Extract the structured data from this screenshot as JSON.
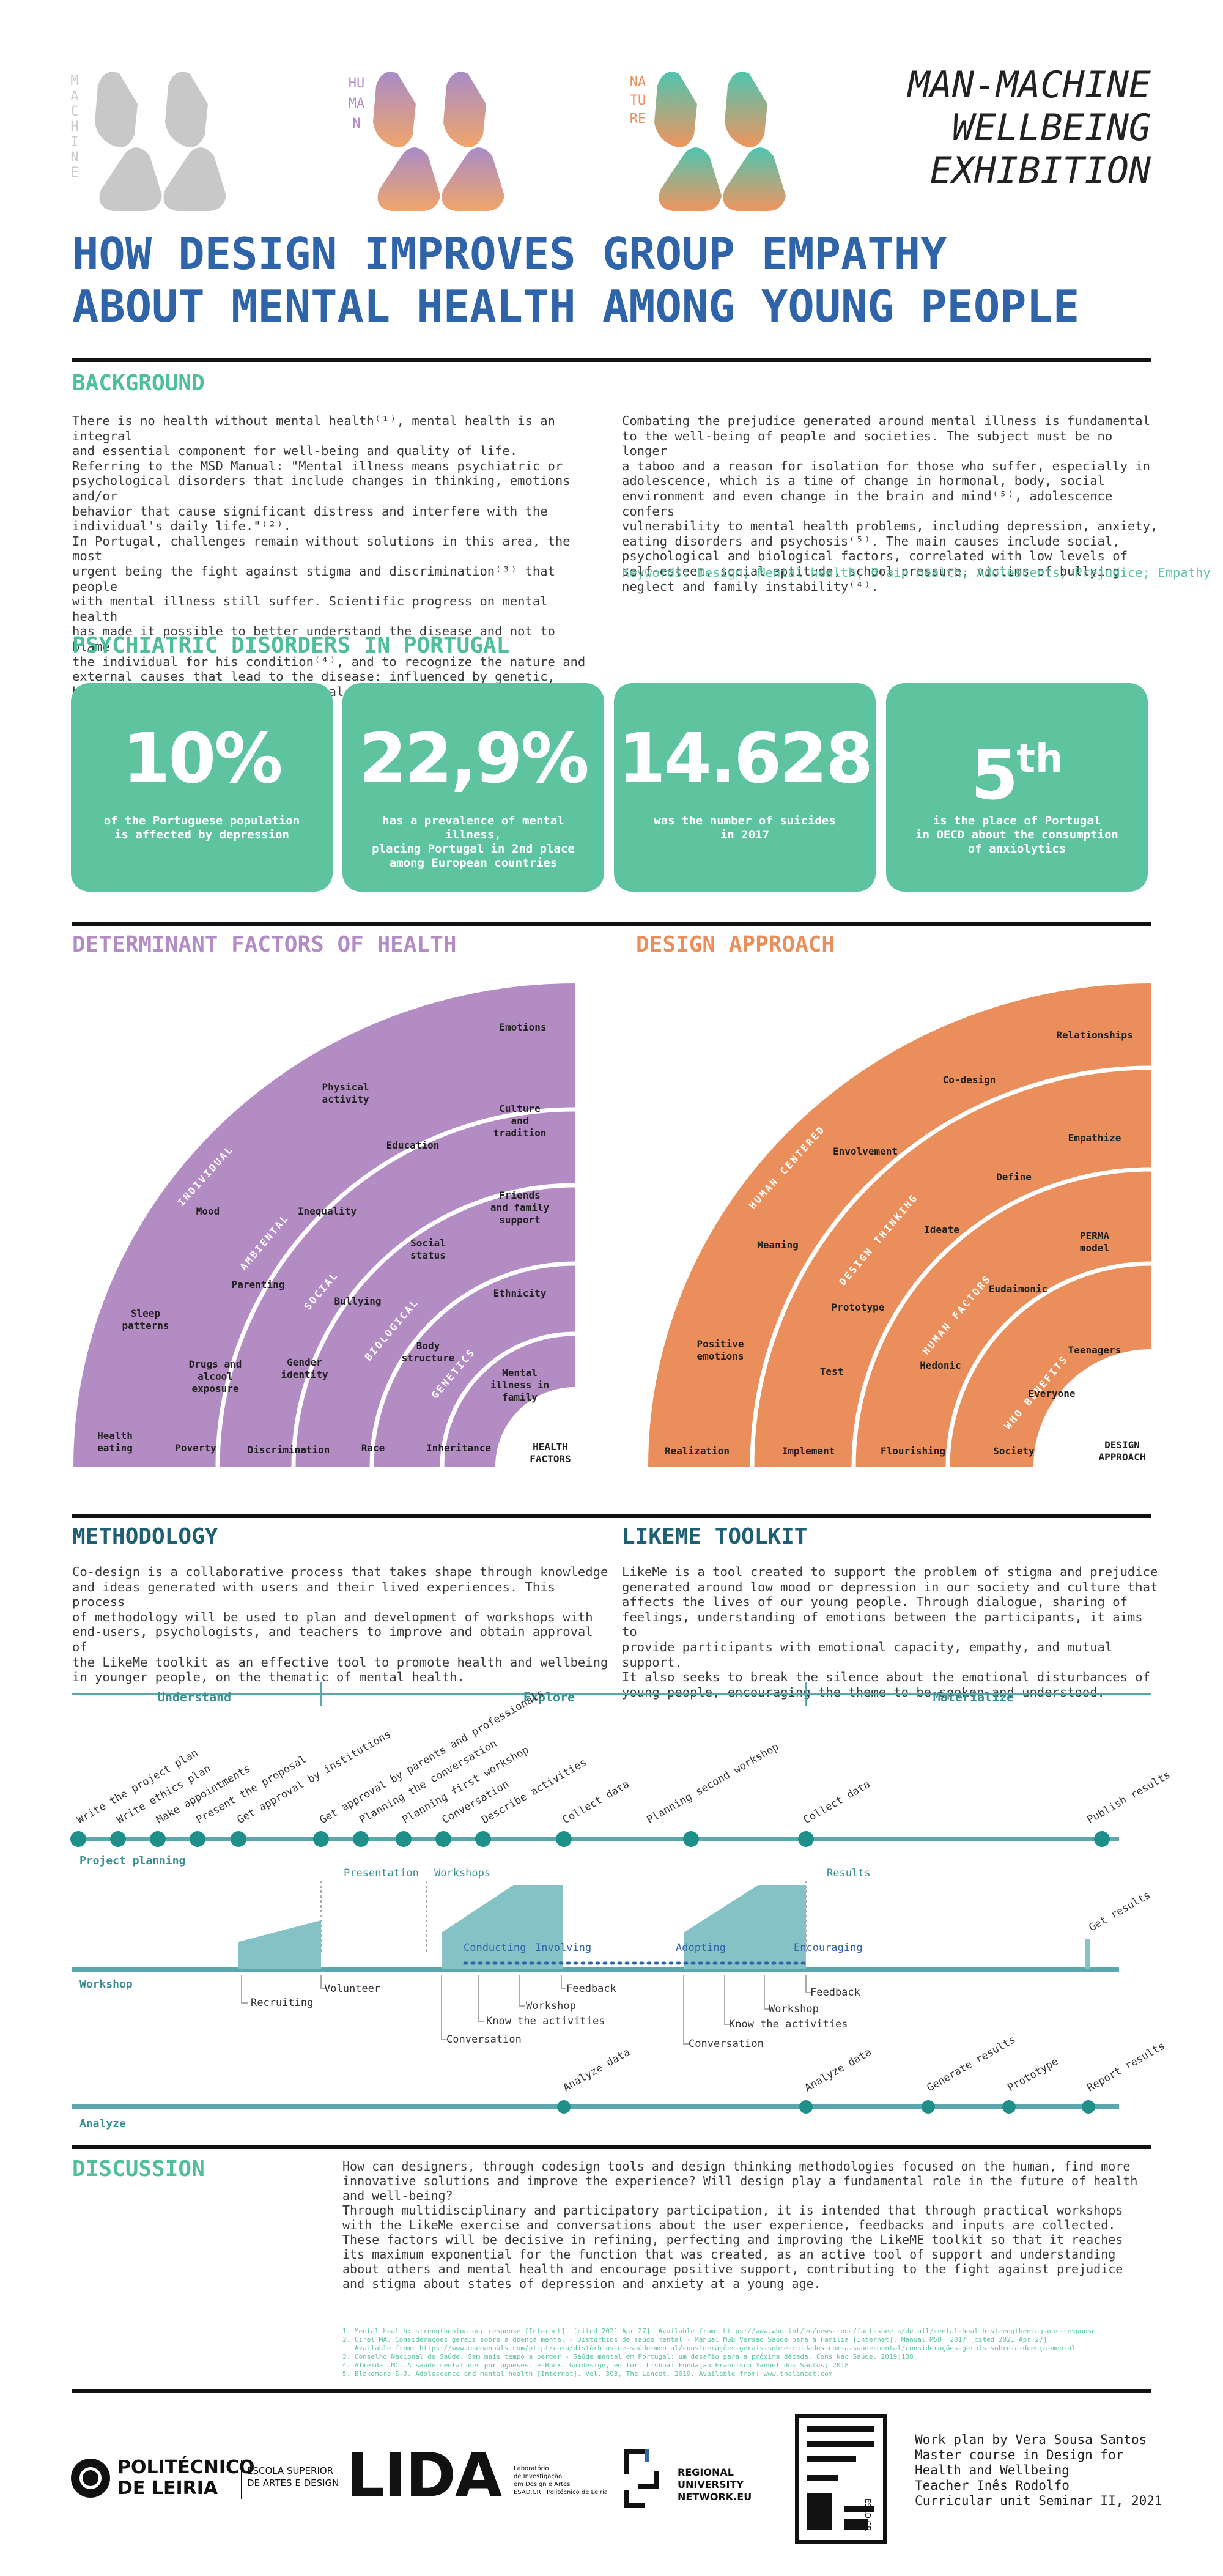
{
  "header": {
    "logos": [
      {
        "vertical_text": "MACHINE",
        "color": "#c9c9c9"
      },
      {
        "vertical_text": "HUMAN",
        "color": "#b48cc4"
      },
      {
        "vertical_text": "NATURE",
        "color": "#ea8f5b"
      }
    ],
    "exhibition_title": [
      "MAN-MACHINE",
      "WELLBEING",
      "EXHIBITION"
    ]
  },
  "main_title": [
    "HOW DESIGN IMPROVES GROUP EMPATHY",
    "ABOUT MENTAL HEALTH AMONG YOUNG PEOPLE"
  ],
  "background": {
    "heading": "BACKGROUND",
    "left_text": "There is no health without mental health⁽¹⁾, mental health is an integral\nand essential component for well-being and quality of life.\nReferring to the MSD Manual: \"Mental illness means psychiatric or\npsychological disorders that include changes in thinking, emotions and/or\nbehavior that cause significant distress and interfere with the\nindividual's daily life.\"⁽²⁾.\nIn Portugal, challenges remain without solutions in this area, the most\nurgent being the fight against stigma and discrimination⁽³⁾ that people\nwith mental illness still suffer. Scientific progress on mental health\nhas made it possible to better understand the disease and not to blame\nthe individual for his condition⁽⁴⁾, and to recognize the nature and\nexternal causes that lead to the disease: influenced by genetic,\nbiological, social and environmental factors.",
    "right_text": "Combating the prejudice generated around mental illness is fundamental\nto the well-being of people and societies. The subject must be no longer\na taboo and a reason for isolation for those who suffer, especially in\nadolescence, which is a time of change in hormonal, body, social\nenvironment and even change in the brain and mind⁽⁵⁾, adolescence confers\nvulnerability to mental health problems, including depression, anxiety,\neating disorders and psychosis⁽⁵⁾. The main causes include social,\npsychological and biological factors, correlated with low levels of\nself-esteem, social aptitude, school pressure, victims of bullying,\nneglect and family instability⁽⁴⁾.",
    "keywords": "Keywords: Design; Mental health; Brain health; Adolescents; Prejudice; Empathy"
  },
  "psychiatric": {
    "heading": "PSYCHIATRIC DISORDERS IN PORTUGAL",
    "stats": [
      {
        "value": "10%",
        "sup": "",
        "caption": "of the Portuguese population\nis affected by depression"
      },
      {
        "value": "22,9%",
        "sup": "",
        "caption": "has a prevalence of mental illness,\nplacing Portugal in 2nd place\namong European countries"
      },
      {
        "value": "14.628",
        "sup": "",
        "caption": "was the number of suicides\nin 2017"
      },
      {
        "value": "5",
        "sup": "th",
        "caption": "is the place of Portugal\nin OECD about the consumption\nof anxiolytics"
      }
    ]
  },
  "determinant": {
    "heading": "DETERMINANT FACTORS OF HEALTH",
    "color": "#b48cc4",
    "center_label": [
      "HEALTH",
      "FACTORS"
    ],
    "bands": [
      "INDIVIDUAL",
      "AMBIENTAL",
      "SOCIAL",
      "BIOLOGICAL",
      "GENETICS"
    ],
    "items": {
      "emotions": "Emotions",
      "physical_activity": [
        "Physical",
        "activity"
      ],
      "culture": [
        "Culture",
        "and",
        "tradition"
      ],
      "education": "Education",
      "mood": "Mood",
      "inequality": "Inequality",
      "friends": [
        "Friends",
        "and family",
        "support"
      ],
      "social_status": [
        "Social",
        "status"
      ],
      "meaning_parenting": "Parenting",
      "bullying": "Bullying",
      "ethnicity": "Ethnicity",
      "sleep": [
        "Sleep",
        "patterns"
      ],
      "drugs": [
        "Drugs and",
        "alcool",
        "exposure"
      ],
      "gender": [
        "Gender",
        "identity"
      ],
      "body": [
        "Body",
        "structure"
      ],
      "mental_illness": [
        "Mental",
        "illness in",
        "family"
      ],
      "health_eating": [
        "Health",
        "eating"
      ],
      "poverty": "Poverty",
      "discrimination": "Discrimination",
      "race": "Race",
      "inheritance": "Inheritance"
    }
  },
  "design": {
    "heading": "DESIGN APPROACH",
    "color": "#ea8f5b",
    "center_label": [
      "DESIGN",
      "APPROACH"
    ],
    "bands": [
      "HUMAN CENTERED",
      "DESIGN THINKING",
      "HUMAN FACTORS",
      "WHO BENEFITS"
    ],
    "items": {
      "relationships": "Relationships",
      "codesign": "Co-design",
      "envolvement": "Envolvement",
      "empathize": "Empathize",
      "define": "Define",
      "meaning": "Meaning",
      "ideate": "Ideate",
      "perma": [
        "PERMA",
        "model"
      ],
      "prototype": "Prototype",
      "eudaimonic": "Eudaimonic",
      "positive": [
        "Positive",
        "emotions"
      ],
      "teenagers": "Teenagers",
      "test": "Test",
      "hedonic": "Hedonic",
      "everyone": "Everyone",
      "realization": "Realization",
      "implement": "Implement",
      "flourishing": "Flourishing",
      "society": "Society"
    }
  },
  "methodology": {
    "heading": "METHODOLOGY",
    "text": "Co-design is a collaborative process that takes shape through knowledge\nand ideas generated with users and their lived experiences. This process\nof methodology will be used to plan and development of workshops with\nend-users, psychologists, and teachers to improve and obtain approval of\nthe LikeMe toolkit as an effective tool to promote health and wellbeing\nin younger people, on the thematic of mental health."
  },
  "likeme": {
    "heading": "LIKEME TOOLKIT",
    "text": "LikeMe is a tool created to support the problem of stigma and prejudice\ngenerated around low mood or depression in our society and culture that\naffects the lives of our young people. Through dialogue, sharing of\nfeelings, understanding of emotions between the participants, it aims to\nprovide participants with emotional capacity, empathy, and mutual support.\nIt also seeks to break the silence about the emotional disturbances of\nyoung people, encouraging the theme to be spoken and understood."
  },
  "timeline": {
    "phases": [
      "Understand",
      "Explore",
      "Materialize"
    ],
    "project_planning": "Project planning",
    "workshop": "Workshop",
    "analyze": "Analyze",
    "planning_steps": [
      "Write the project plan",
      "Write ethics plan",
      "Make appointments",
      "Present the proposal",
      "Get approval by institutions",
      "Get approval by parents and professionals",
      "Planning the conversation",
      "Planning first workshop",
      "Conversation",
      "Describe activities",
      "Collect data",
      "Planning second workshop",
      "Collect data",
      "Publish results"
    ],
    "workshop_labels": {
      "presentation": "Presentation",
      "workshops": "Workshops",
      "results": "Results",
      "conducting": "Conducting",
      "involving": "Involving",
      "adopting": "Adopting",
      "encouraging": "Encouraging",
      "get_results": "Get results",
      "recruiting": "Recruiting",
      "volunteer": "Volunteer",
      "feedback": "Feedback",
      "workshop": "Workshop",
      "know": "Know the activities",
      "conversation": "Conversation"
    },
    "analyze_steps": [
      "Analyze data",
      "Analyze data",
      "Generate results",
      "Prototype",
      "Report results"
    ]
  },
  "discussion": {
    "heading": "DISCUSSION",
    "text": "How can designers, through codesign tools and design thinking methodologies focused on the human, find more\ninnovative solutions and improve the experience? Will design play a fundamental role in the future of health\nand well-being?\nThrough multidisciplinary and participatory participation, it is intended that through practical workshops\nwith the LikeMe exercise and conversations about the user experience, feedbacks and inputs are collected.\nThese factors will be decisive in refining, perfecting and improving the LikeME toolkit so that it reaches\nits maximum exponential for the function that was created, as an active tool of support and understanding\nabout others and mental health and encourage positive support, contributing to the fight against prejudice\nand stigma about states of depression and anxiety at a young age."
  },
  "references": "1. Mental health: strengthening our response [Internet]. [cited 2021 Apr 27]. Available from: https://www.who.int/en/news-room/fact-sheets/detail/mental-health-strengthening-our-response\n2. Cirel MA. Considerações gerais sobre a doença mental - Distúrbios de saúde mental - Manual MSD Versão Saúde para a Família [Internet]. Manual MSD. 2017 [cited 2021 Apr 27].\n   Available from: https://www.msdmanuals.com/pt-pt/casa/distúrbios-de-saúde-mental/considerações-gerais-sobre-cuidados-com-a-saúde-mental/considerações-gerais-sobre-a-doença-mental\n3. Conselho Nacional de Saúde. Sem mais tempo a perder - Saúde mental em Portugal: um desafio para a próxima década. Cons Nac Saúde. 2019;138.\n4. Almeida JMC. A saúde mental dos portugueses. e-Book. Guidesign, editor. Lisboa: Fundação Francisco Manuel dos Santos; 2018.\n5. Blakemore S-J. Adolescence and mental health [Internet]. Vol. 393, The Lancet. 2019. Available from: www.thelancet.com",
  "footer": {
    "politecnico": [
      "POLITÉCNICO",
      "DE LEIRIA"
    ],
    "escola": [
      "ESCOLA SUPERIOR",
      "DE ARTES E DESIGN"
    ],
    "lida": "LIDA",
    "lida_sub": [
      "Laboratório",
      "de Investigação",
      "em Design e Artes",
      "ESAD.CR · Politécnico de Leiria"
    ],
    "run": "RUN",
    "run_sub": [
      "REGIONAL",
      "UNIVERSITY",
      "NETWORK.EU"
    ],
    "esad": "ESAD CR",
    "credits": "Work plan by Vera Sousa Santos\nMaster course in Design for\nHealth and Wellbeing\nTeacher Inês Rodolfo\nCurricular unit Seminar II, 2021"
  }
}
